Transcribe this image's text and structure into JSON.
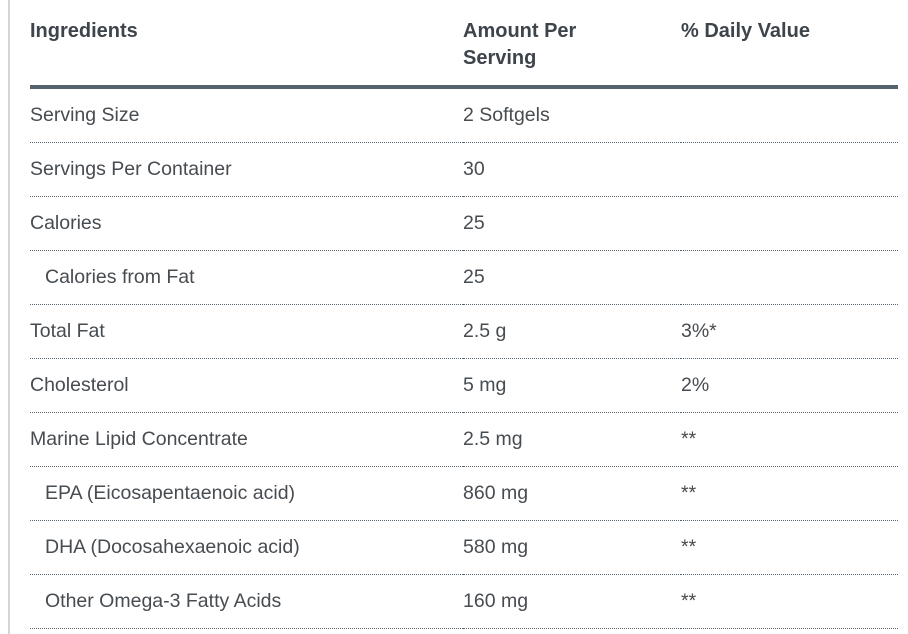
{
  "colors": {
    "background": "#ffffff",
    "text": "#474c51",
    "header_text": "#3e444b",
    "rule": "#54636e",
    "separator": "#54636e",
    "page_edge_line": "#d5d5d5"
  },
  "chart_data": {
    "type": "table",
    "title": "",
    "columns": [
      "Ingredients",
      "Amount Per Serving",
      "% Daily Value"
    ],
    "rows": [
      [
        "Serving Size",
        "2 Softgels",
        ""
      ],
      [
        "Servings Per Container",
        "30",
        ""
      ],
      [
        "Calories",
        "25",
        ""
      ],
      [
        "Calories from Fat",
        "25",
        ""
      ],
      [
        "Total Fat",
        "2.5 g",
        "3%*"
      ],
      [
        "Cholesterol",
        "5 mg",
        "2%"
      ],
      [
        "Marine Lipid Concentrate",
        "2.5 mg",
        "**"
      ],
      [
        "EPA (Eicosapentaenoic acid)",
        "860 mg",
        "**"
      ],
      [
        "DHA (Docosahexaenoic acid)",
        "580 mg",
        "**"
      ],
      [
        "Other Omega-3 Fatty Acids",
        "160 mg",
        "**"
      ]
    ],
    "indented_rows": [
      3,
      7,
      8,
      9
    ],
    "layout": {
      "header_rule": "4px solid",
      "row_separator": "1px dotted",
      "grid": "horizontal-only"
    }
  }
}
